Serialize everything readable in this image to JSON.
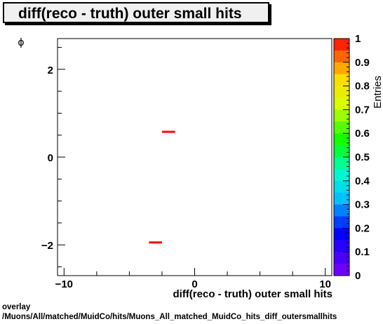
{
  "chart_data": {
    "type": "heatmap",
    "title": "diff(reco - truth) outer small hits",
    "xlabel": "diff(reco - truth) outer small hits",
    "ylabel": "ϕ",
    "zlabel": "Entries",
    "xlim": [
      -10.5,
      10.5
    ],
    "ylim": [
      -2.7,
      2.7
    ],
    "zlim": [
      0,
      1
    ],
    "x_ticks": [
      "−10",
      "0",
      "10"
    ],
    "y_ticks": [
      "−2",
      "0",
      "2"
    ],
    "z_ticks": [
      "0",
      "0.1",
      "0.2",
      "0.3",
      "0.4",
      "0.5",
      "0.6",
      "0.7",
      "0.8",
      "0.9",
      "1"
    ],
    "cells": [
      {
        "x0": -2.5,
        "x1": -1.5,
        "y0": 0.55,
        "y1": 0.6,
        "value": 1
      },
      {
        "x0": -3.5,
        "x1": -2.5,
        "y0": -1.97,
        "y1": -1.92,
        "value": 1
      }
    ],
    "colors": {
      "bin": "#ff0d0d"
    }
  },
  "footer": {
    "line1": "overlay",
    "line2": "/Muons/All/matched/MuidCo/hits/Muons_All_matched_MuidCo_hits_diff_outersmallhits"
  }
}
